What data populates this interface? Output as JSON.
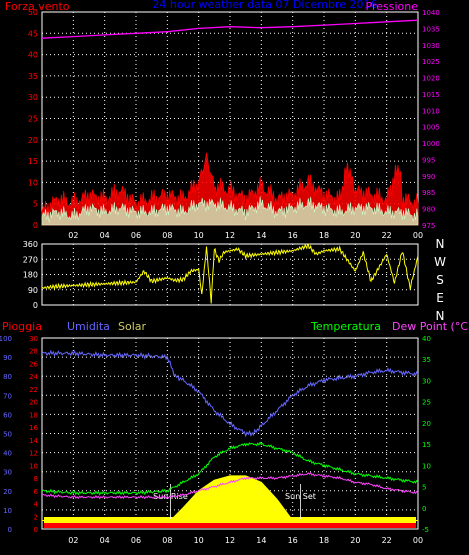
{
  "header": {
    "left_label": "Forza vento",
    "title": "24 hour weather data  07 Dicembre 2016",
    "right_label": "Pressione"
  },
  "direction_labels": [
    "N",
    "W",
    "S",
    "E",
    "N"
  ],
  "bottom_labels": {
    "pioggia": "Pioggia",
    "umidita": "Umidita",
    "solar": "Solar",
    "temperatura": "Temperatura",
    "dewpoint": "Dew Point (°C)"
  },
  "annotations": {
    "sunrise": "Sun Rise",
    "sunset": "Sun Set"
  },
  "colors": {
    "pressure": "#ff00ff",
    "wind": "#ff0000",
    "wind_avg": "#ccffcc",
    "direction": "#ffff00",
    "humidity": "#6666ff",
    "temperature": "#00ff00",
    "dewpoint": "#ff44ff",
    "solar": "#ffff00",
    "rain": "#ff0000"
  },
  "chart_data": [
    {
      "type": "line",
      "name": "wind-pressure",
      "x_ticks": [
        "02",
        "04",
        "06",
        "08",
        "10",
        "12",
        "14",
        "16",
        "18",
        "20",
        "22",
        "00"
      ],
      "y_left_ticks": [
        "0",
        "5",
        "10",
        "15",
        "20",
        "25",
        "30",
        "35",
        "40",
        "45",
        "50"
      ],
      "y_right_ticks": [
        "975",
        "980",
        "985",
        "990",
        "995",
        "1000",
        "1005",
        "1010",
        "1015",
        "1020",
        "1025",
        "1030",
        "1035",
        "1040"
      ],
      "ylim_left": [
        0,
        50
      ],
      "ylim_right": [
        975,
        1040
      ],
      "pressure": {
        "x": [
          0,
          2,
          4,
          6,
          8,
          10,
          12,
          14,
          16,
          18,
          20,
          22,
          24
        ],
        "values": [
          1032,
          1032.5,
          1033,
          1033.5,
          1034,
          1035,
          1035.5,
          1035.2,
          1035.5,
          1036,
          1036.5,
          1037,
          1037.5
        ]
      },
      "wind_gust": {
        "x": [
          0,
          1,
          2,
          3,
          4,
          5,
          6,
          7,
          8,
          9,
          10,
          10.5,
          11,
          12,
          13,
          14,
          15,
          16,
          17,
          18,
          19,
          19.5,
          20,
          21,
          22,
          22.8,
          23,
          24
        ],
        "values": [
          3,
          6,
          5,
          7,
          6,
          8,
          5,
          6,
          7,
          6,
          10,
          16,
          9,
          8,
          6,
          9,
          6,
          7,
          10,
          7,
          6,
          14,
          8,
          7,
          6,
          14,
          6,
          5
        ]
      },
      "wind_avg": {
        "x": [
          0,
          1,
          2,
          3,
          4,
          5,
          6,
          7,
          8,
          9,
          10,
          11,
          12,
          13,
          14,
          15,
          16,
          17,
          18,
          19,
          20,
          21,
          22,
          23,
          24
        ],
        "values": [
          2,
          3,
          2,
          4,
          3,
          4,
          3,
          3,
          4,
          3,
          5,
          5,
          4,
          3,
          5,
          3,
          4,
          5,
          4,
          3,
          4,
          4,
          3,
          3,
          2
        ]
      }
    },
    {
      "type": "line",
      "name": "wind-direction",
      "x_ticks": [
        "02",
        "04",
        "06",
        "08",
        "10",
        "12",
        "14",
        "16",
        "18",
        "20",
        "22",
        "00"
      ],
      "y_ticks": [
        "0",
        "90",
        "180",
        "270",
        "360"
      ],
      "ylim": [
        0,
        360
      ],
      "x": [
        0,
        1,
        2,
        3,
        4,
        5,
        6,
        6.5,
        7,
        7.5,
        8,
        8.5,
        9,
        9.5,
        10,
        10.2,
        10.5,
        10.8,
        11,
        11.3,
        11.6,
        12,
        12.5,
        13,
        14,
        15,
        16,
        17,
        17.5,
        18,
        19,
        20,
        20.5,
        21,
        22,
        22.5,
        23,
        23.5,
        24
      ],
      "values": [
        100,
        110,
        115,
        120,
        125,
        130,
        135,
        200,
        140,
        150,
        160,
        145,
        150,
        200,
        210,
        60,
        340,
        20,
        330,
        260,
        310,
        320,
        330,
        290,
        300,
        310,
        320,
        350,
        300,
        320,
        330,
        200,
        310,
        140,
        300,
        130,
        320,
        100,
        290
      ]
    },
    {
      "type": "line",
      "name": "weather-multi",
      "x_ticks": [
        "02",
        "04",
        "06",
        "08",
        "10",
        "12",
        "14",
        "16",
        "18",
        "20",
        "22",
        "00"
      ],
      "y_left_humidity_ticks": [
        "0",
        "10",
        "20",
        "30",
        "40",
        "50",
        "60",
        "70",
        "80",
        "90",
        "100"
      ],
      "y_left_rain_ticks": [
        "0",
        "2",
        "4",
        "6",
        "8",
        "10",
        "12",
        "14",
        "16",
        "18",
        "20",
        "22",
        "24",
        "26",
        "28",
        "30"
      ],
      "y_right_ticks": [
        "-5",
        "0",
        "5",
        "10",
        "15",
        "20",
        "25",
        "30",
        "35",
        "40"
      ],
      "ylim_humidity": [
        0,
        100
      ],
      "ylim_temperature": [
        -5,
        40
      ],
      "humidity": {
        "x": [
          0,
          2,
          4,
          6,
          8,
          8.5,
          9,
          10,
          11,
          12,
          13,
          13.5,
          14,
          15,
          16,
          17,
          18,
          19,
          20,
          21,
          22,
          23,
          24
        ],
        "values": [
          92,
          92,
          91,
          91,
          90,
          80,
          78,
          72,
          62,
          55,
          50,
          50,
          54,
          62,
          70,
          75,
          78,
          79,
          80,
          82,
          83,
          82,
          81
        ]
      },
      "temperature": {
        "x": [
          0,
          2,
          4,
          6,
          8,
          9,
          10,
          11,
          12,
          13,
          14,
          15,
          16,
          17,
          18,
          19,
          20,
          21,
          22,
          23,
          24
        ],
        "values": [
          4,
          3.5,
          3.5,
          3.5,
          4,
          6,
          8,
          12,
          14,
          15,
          15,
          14,
          13,
          11,
          10,
          9,
          8,
          7.5,
          7,
          6.5,
          6
        ]
      },
      "dewpoint": {
        "x": [
          0,
          2,
          4,
          6,
          8,
          9,
          10,
          11,
          12,
          13,
          14,
          15,
          16,
          17,
          18,
          19,
          20,
          21,
          22,
          23,
          24
        ],
        "values": [
          3,
          2.5,
          2.5,
          2.5,
          2.5,
          3,
          4,
          5,
          6,
          7,
          7,
          7,
          7.5,
          8,
          7.5,
          7,
          6,
          5.5,
          4.5,
          4,
          3.5
        ]
      },
      "solar": {
        "x": [
          0,
          7,
          8.2,
          9,
          10,
          11,
          12,
          13,
          14,
          15,
          16,
          16.5,
          24
        ],
        "values": [
          -3,
          -3,
          -3,
          0,
          4,
          6.5,
          7.5,
          7.5,
          6,
          2,
          -3,
          -3,
          -3
        ]
      },
      "sunrise_hour": 8.2,
      "sunset_hour": 16.5
    }
  ]
}
